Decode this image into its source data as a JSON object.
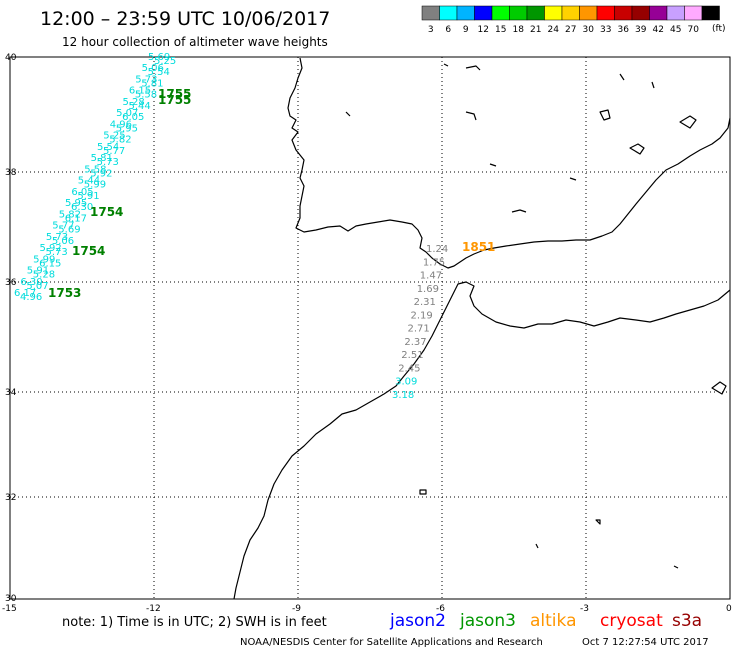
{
  "header": {
    "title": "12:00 – 23:59 UTC 10/06/2017",
    "subtitle": "12 hour collection of altimeter wave heights"
  },
  "legend": {
    "unit": "(ft)",
    "bins": [
      {
        "label": "3",
        "color": "#808080"
      },
      {
        "label": "6",
        "color": "#00ffff"
      },
      {
        "label": "9",
        "color": "#00b4ff"
      },
      {
        "label": "12",
        "color": "#0000ff"
      },
      {
        "label": "15",
        "color": "#00ff00"
      },
      {
        "label": "18",
        "color": "#00cc00"
      },
      {
        "label": "21",
        "color": "#009600"
      },
      {
        "label": "24",
        "color": "#ffff00"
      },
      {
        "label": "27",
        "color": "#ffd200"
      },
      {
        "label": "30",
        "color": "#ff9600"
      },
      {
        "label": "33",
        "color": "#ff0000"
      },
      {
        "label": "36",
        "color": "#c80000"
      },
      {
        "label": "39",
        "color": "#960000"
      },
      {
        "label": "42",
        "color": "#960096"
      },
      {
        "label": "45",
        "color": "#c8a0ff"
      },
      {
        "label": "70",
        "color": "#ffaaff"
      },
      {
        "label": "",
        "color": "#000000"
      }
    ]
  },
  "axes": {
    "lon_ticks": [
      "-15",
      "-12",
      "-9",
      "-6",
      "-3",
      "0"
    ],
    "lat_ticks": [
      "40",
      "38",
      "36",
      "34",
      "32",
      "30"
    ]
  },
  "track_west": {
    "color": "#00dcdc",
    "labels": [
      "5.69",
      "5.06",
      "5.73",
      "6.15",
      "5.28",
      "5.07",
      "4.96",
      "5.25",
      "5.54",
      "5.81",
      "5.58",
      "5.44",
      "6.05",
      "5.95",
      "5.82",
      "5.77",
      "5.73",
      "5.92",
      "5.99",
      "5.91",
      "6.30",
      "6.17"
    ],
    "times": [
      "1755",
      "1755",
      "1754",
      "1754",
      "1753"
    ],
    "time_color": "#008000"
  },
  "track_east": {
    "values": [
      "1.24",
      "1.75",
      "1.47",
      "1.69",
      "2.31",
      "2.19",
      "2.71",
      "2.37",
      "2.51",
      "2.45",
      "3.09",
      "3.18"
    ],
    "values_color": "#808080",
    "cyan_color": "#00dcdc",
    "time": "1851",
    "time_color": "#ff9600"
  },
  "footer": {
    "note": "note:  1) Time is in UTC;  2) SWH is in feet",
    "satellites": [
      {
        "name": "jason2",
        "color": "#0000ff"
      },
      {
        "name": "jason3",
        "color": "#009600"
      },
      {
        "name": "altika",
        "color": "#ff9600"
      },
      {
        "name": "cryosat",
        "color": "#ff0000"
      },
      {
        "name": "s3a",
        "color": "#960000"
      }
    ],
    "credit": "NOAA/NESDIS Center for Satellite Applications and Research",
    "timestamp": "Oct  7 12:27:54 UTC 2017"
  }
}
